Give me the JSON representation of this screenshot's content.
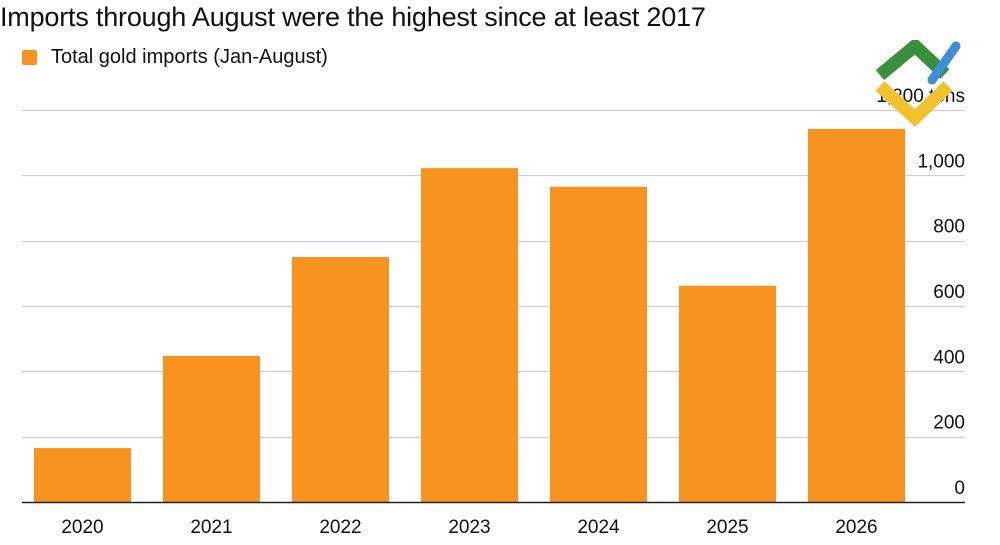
{
  "chart_data": {
    "type": "bar",
    "title": "Imports through August were the highest since at least 2017",
    "legend": {
      "label": "Total gold imports (Jan-August)",
      "position": "top-left"
    },
    "unit_label": "1,200 tons",
    "categories": [
      "2020",
      "2021",
      "2022",
      "2023",
      "2024",
      "2025",
      "2026"
    ],
    "series": [
      {
        "name": "Total gold imports (Jan-August)",
        "values": [
          165,
          447,
          750,
          1022,
          965,
          662,
          1142
        ]
      }
    ],
    "ylim": [
      0,
      1200
    ],
    "yticks": [
      {
        "value": 0,
        "label": "0"
      },
      {
        "value": 200,
        "label": "200"
      },
      {
        "value": 400,
        "label": "400"
      },
      {
        "value": 600,
        "label": "600"
      },
      {
        "value": 800,
        "label": "800"
      },
      {
        "value": 1000,
        "label": "1,000"
      }
    ],
    "grid": true,
    "y_axis_side": "right",
    "colors": {
      "bar": "#f7931e",
      "grid": "#cfcfcf",
      "axis": "#222222",
      "text": "#111111"
    }
  },
  "logo": {
    "icon": "chevron-logo-icon",
    "colors": [
      "#3a8f3a",
      "#f2c12e",
      "#3b8fd9"
    ]
  }
}
